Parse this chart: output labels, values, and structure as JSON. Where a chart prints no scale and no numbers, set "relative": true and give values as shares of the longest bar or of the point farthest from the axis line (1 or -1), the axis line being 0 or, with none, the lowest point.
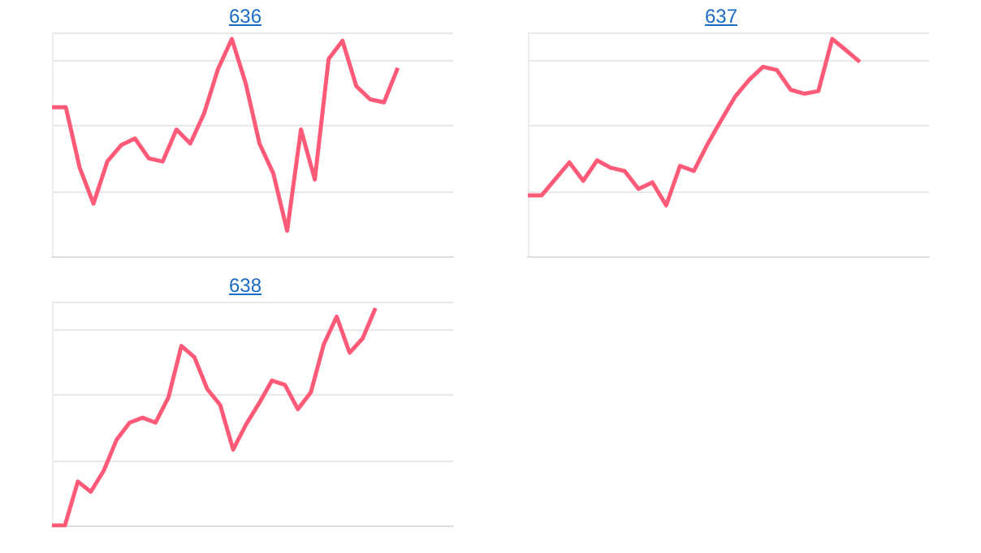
{
  "chart_data": [
    {
      "type": "line",
      "title": "636",
      "relative": true,
      "grid": "y",
      "color": "#ff5a78",
      "categories": [
        null,
        null,
        null,
        null,
        null,
        null,
        null,
        null,
        null,
        null,
        null,
        null,
        null,
        null,
        null,
        null,
        null,
        null,
        null,
        null,
        null,
        null,
        null,
        null,
        null,
        null,
        null,
        null,
        null,
        null
      ],
      "values": [
        0.686,
        0.686,
        0.408,
        0.242,
        0.436,
        0.511,
        0.542,
        0.45,
        0.436,
        0.583,
        0.519,
        0.658,
        0.861,
        1,
        0.797,
        0.519,
        0.381,
        0.117,
        0.583,
        0.353,
        0.908,
        0.992,
        0.783,
        0.722,
        0.708,
        0.867,
        null,
        null,
        null,
        null
      ]
    },
    {
      "type": "line",
      "title": "637",
      "relative": true,
      "grid": "y",
      "color": "#ff5a78",
      "categories": [
        null,
        null,
        null,
        null,
        null,
        null,
        null,
        null,
        null,
        null,
        null,
        null,
        null,
        null,
        null,
        null,
        null,
        null,
        null,
        null,
        null,
        null,
        null,
        null,
        null,
        null,
        null,
        null,
        null,
        null
      ],
      "values": [
        0.28,
        0.28,
        0.356,
        0.432,
        0.347,
        0.441,
        0.407,
        0.392,
        0.31,
        0.34,
        0.234,
        0.416,
        0.392,
        0.517,
        0.629,
        0.736,
        0.812,
        0.872,
        0.857,
        0.766,
        0.748,
        0.76,
        1,
        0.948,
        0.894,
        null,
        null,
        null,
        null,
        null
      ]
    },
    {
      "type": "line",
      "title": "638",
      "relative": true,
      "grid": "y",
      "color": "#ff5a78",
      "categories": [
        null,
        null,
        null,
        null,
        null,
        null,
        null,
        null,
        null,
        null,
        null,
        null,
        null,
        null,
        null,
        null,
        null,
        null,
        null,
        null,
        null,
        null,
        null,
        null,
        null,
        null,
        null,
        null,
        null,
        null,
        null,
        null
      ],
      "values": [
        0,
        0,
        0.202,
        0.155,
        0.252,
        0.395,
        0.473,
        0.496,
        0.473,
        0.589,
        0.826,
        0.775,
        0.628,
        0.554,
        0.349,
        0.465,
        0.562,
        0.667,
        0.647,
        0.535,
        0.612,
        0.833,
        0.961,
        0.795,
        0.86,
        1,
        null,
        null,
        null,
        null,
        null,
        null
      ]
    }
  ]
}
